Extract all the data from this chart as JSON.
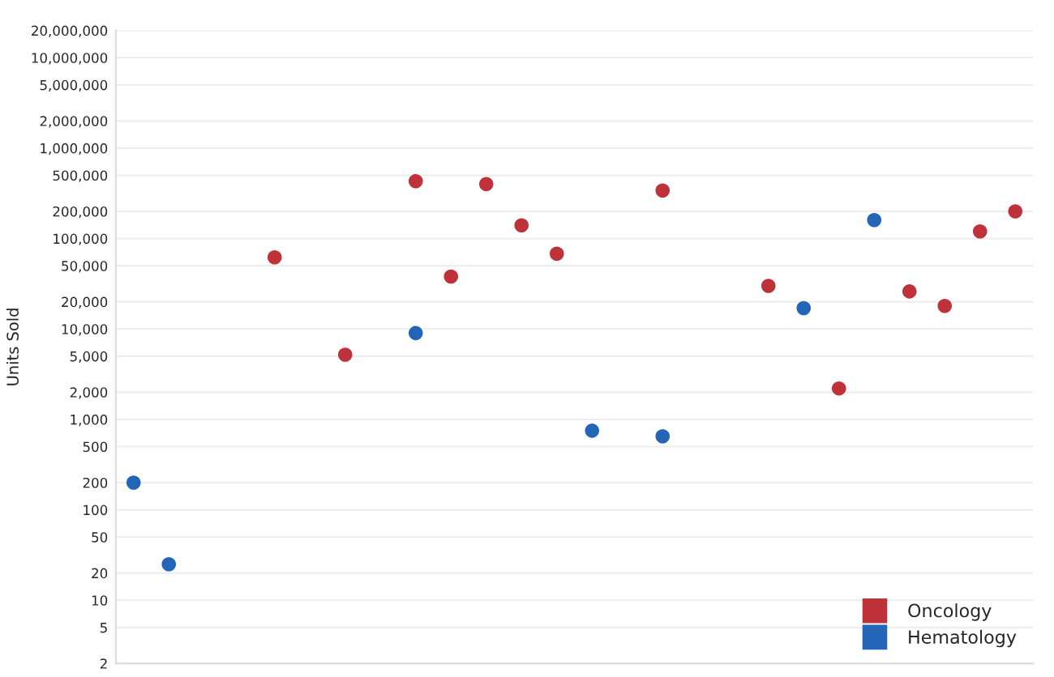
{
  "chart_data": {
    "type": "scatter",
    "ylabel": "Units Sold",
    "categories": [
      null,
      null,
      null,
      null,
      null,
      null,
      null,
      null,
      null,
      null,
      null,
      null,
      null,
      null,
      null,
      null,
      null,
      null,
      null,
      null,
      null,
      null,
      null,
      null,
      null,
      null
    ],
    "series": [
      {
        "name": "Oncology",
        "color": "#c0323a",
        "values": [
          null,
          null,
          null,
          null,
          62000,
          null,
          5200,
          null,
          430000,
          38000,
          400000,
          140000,
          68000,
          null,
          null,
          340000,
          null,
          null,
          30000,
          null,
          2200,
          null,
          26000,
          18000,
          120000,
          200000
        ]
      },
      {
        "name": "Hematology",
        "color": "#2366b8",
        "values": [
          200,
          25,
          null,
          null,
          null,
          null,
          null,
          null,
          9000,
          null,
          null,
          null,
          null,
          750,
          null,
          650,
          null,
          null,
          null,
          17000,
          null,
          160000,
          null,
          null,
          null,
          null
        ]
      }
    ],
    "log": "y",
    "ylim": [
      2,
      20000000
    ],
    "yticks": [
      2,
      5,
      10,
      20,
      50,
      100,
      200,
      500,
      {
        "value": 1000,
        "label": "1,000"
      },
      {
        "value": 2000,
        "label": "2,000"
      },
      {
        "value": 5000,
        "label": "5,000"
      },
      {
        "value": 10000,
        "label": "10,000"
      },
      {
        "value": 20000,
        "label": "20,000"
      },
      {
        "value": 50000,
        "label": "50,000"
      },
      {
        "value": 100000,
        "label": "100,000"
      },
      {
        "value": 200000,
        "label": "200,000"
      },
      {
        "value": 500000,
        "label": "500,000"
      },
      {
        "value": 1000000,
        "label": "1,000,000"
      },
      {
        "value": 2000000,
        "label": "2,000,000"
      },
      {
        "value": 5000000,
        "label": "5,000,000"
      },
      {
        "value": 10000000,
        "label": "10,000,000"
      },
      {
        "value": 20000000,
        "label": "20,000,000"
      }
    ],
    "grid": "y",
    "legend": "bottom right",
    "marker": "circle",
    "tick_labels": "y"
  }
}
